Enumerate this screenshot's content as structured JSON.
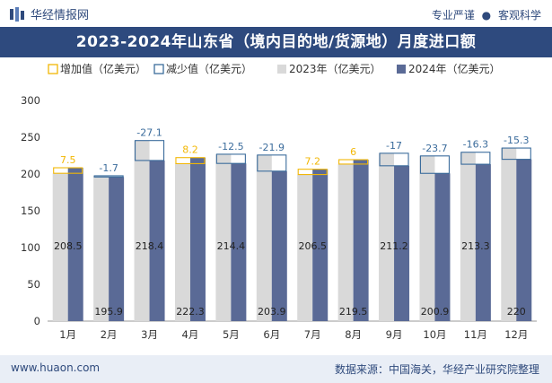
{
  "header": {
    "brand": "华经情报网",
    "slogan_left": "专业严谨",
    "slogan_sep": "●",
    "slogan_right": "客观科学"
  },
  "title": "2023-2024年山东省（境内目的地/货源地）月度进口额",
  "footer": {
    "site": "www.huaon.com",
    "source": "数据来源：中国海关，华经产业研究院整理"
  },
  "colors": {
    "bar2023": "#d9d9d9",
    "bar2024": "#5a6a96",
    "increase": "#f2b705",
    "decrease": "#3b6c9c",
    "header": "#2e4a7e"
  },
  "chart_data": {
    "type": "bar",
    "categories": [
      "1月",
      "2月",
      "3月",
      "4月",
      "5月",
      "6月",
      "7月",
      "8月",
      "9月",
      "10月",
      "11月",
      "12月"
    ],
    "series": [
      {
        "name": "2023年（亿美元）",
        "values": [
          201,
          197.6,
          245.5,
          214.1,
          226.9,
          225.8,
          199.3,
          213.5,
          228.2,
          224.6,
          229.6,
          235.3
        ]
      },
      {
        "name": "2024年（亿美元）",
        "values": [
          208.5,
          195.9,
          218.4,
          222.3,
          214.4,
          203.9,
          206.5,
          219.5,
          211.2,
          200.9,
          213.3,
          220
        ]
      }
    ],
    "diff": [
      7.5,
      -1.7,
      -27.1,
      8.2,
      -12.5,
      -21.9,
      7.2,
      6,
      -17,
      -23.7,
      -16.3,
      -15.3
    ],
    "diff_labels": [
      "7.5",
      "-1.7",
      "-27.1",
      "8.2",
      "-12.5",
      "-21.9",
      "7.2",
      "6",
      "-17",
      "-23.7",
      "-16.3",
      "-15.3"
    ],
    "value_labels": [
      "208.5",
      "195.9",
      "218.4",
      "222.3",
      "214.4",
      "203.9",
      "206.5",
      "219.5",
      "211.2",
      "200.9",
      "213.3",
      "220"
    ],
    "legend": [
      "增加值（亿美元）",
      "减少值（亿美元）",
      "2023年（亿美元）",
      "2024年（亿美元）"
    ],
    "yticks": [
      "0",
      "50",
      "100",
      "150",
      "200",
      "250",
      "300"
    ],
    "ylim": [
      0,
      300
    ],
    "grid": false,
    "legend_position": "top"
  }
}
